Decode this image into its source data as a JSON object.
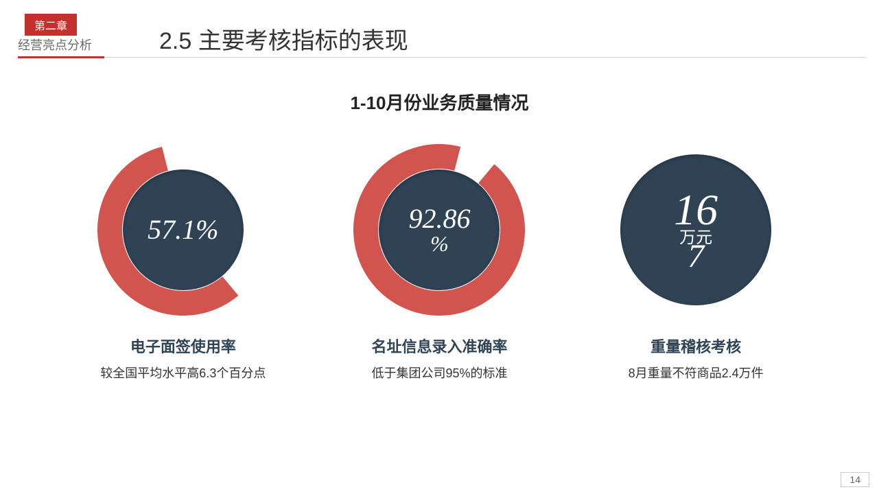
{
  "header": {
    "chapter_badge": "第二章",
    "chapter_subtitle": "经营亮点分析",
    "section_title": "2.5 主要考核指标的表现"
  },
  "sub_heading": "1-10月份业务质量情况",
  "colors": {
    "brand_red": "#c4302b",
    "navy": "#2f4355",
    "donut_ring": "#d2544f",
    "page_bg": "#ffffff",
    "text_dark": "#333333",
    "rule_gray": "#cccccc"
  },
  "metrics": [
    {
      "type": "donut",
      "percent": 57.1,
      "display_value": "57.1%",
      "start_angle_deg": 140,
      "ring_thickness": 36,
      "ring_radius": 107,
      "title": "电子面签使用率",
      "desc": "较全国平均水平高6.3个百分点"
    },
    {
      "type": "donut",
      "percent": 92.86,
      "display_value": "92.86",
      "display_value_sub": "%",
      "start_angle_deg": 40,
      "ring_thickness": 36,
      "ring_radius": 107,
      "title": "名址信息录入准确率",
      "desc": "低于集团公司95%的标准"
    },
    {
      "type": "full",
      "display_value": "16",
      "unit": "万元",
      "tail": "7",
      "circle_radius": 110,
      "title": "重量稽核考核",
      "desc": "8月重量不符商品2.4万件"
    }
  ],
  "page_number": "14"
}
